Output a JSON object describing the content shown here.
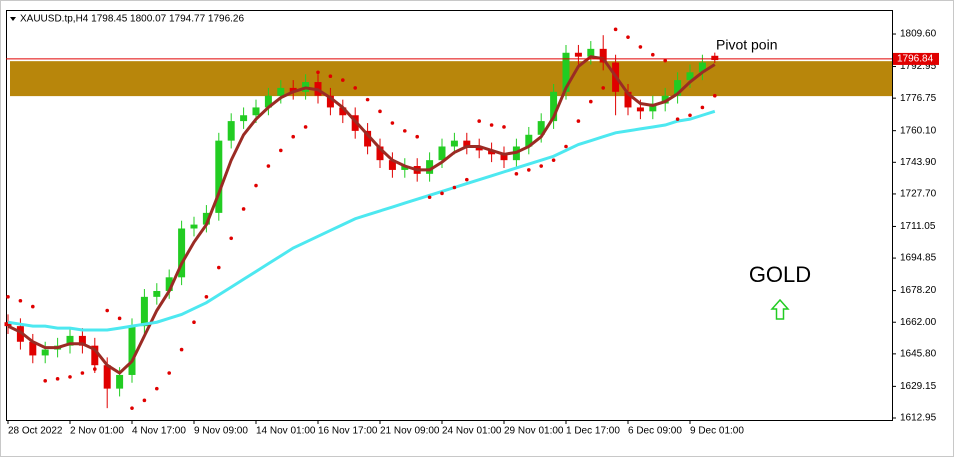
{
  "chart_data": {
    "type": "candlestick",
    "title": "XAUUSD.tp,H4  1798.45 1800.07 1794.77 1796.26",
    "categories": [
      "28 Oct 2022",
      null,
      null,
      null,
      null,
      "2 Nov 01:00",
      null,
      null,
      null,
      null,
      "4 Nov 17:00",
      null,
      null,
      null,
      null,
      "9 Nov 09:00",
      null,
      null,
      null,
      null,
      "14 Nov 01:00",
      null,
      null,
      null,
      null,
      "16 Nov 17:00",
      null,
      null,
      null,
      null,
      "21 Nov 09:00",
      null,
      null,
      null,
      null,
      "24 Nov 01:00",
      null,
      null,
      null,
      null,
      "29 Nov 01:00",
      null,
      null,
      null,
      null,
      "1 Dec 17:00",
      null,
      null,
      null,
      null,
      "6 Dec 09:00",
      null,
      null,
      null,
      null,
      "9 Dec 01:00",
      null,
      null
    ],
    "open": [
      1662,
      1660,
      1652,
      1645,
      1648,
      1650,
      1655,
      1650,
      1640,
      1628,
      1635,
      1660,
      1675,
      1678,
      1685,
      1710,
      1712,
      1718,
      1755,
      1765,
      1768,
      1772,
      1778,
      1782,
      1780,
      1785,
      1778,
      1772,
      1768,
      1760,
      1752,
      1745,
      1740,
      1742,
      1738,
      1745,
      1752,
      1755,
      1752,
      1750,
      1748,
      1745,
      1752,
      1758,
      1765,
      1780,
      1800,
      1798,
      1802,
      1795,
      1780,
      1772,
      1770,
      1774,
      1778,
      1786,
      1790,
      1798.45
    ],
    "high": [
      1666,
      1664,
      1656,
      1652,
      1654,
      1659,
      1659,
      1654,
      1644,
      1639,
      1664,
      1679,
      1682,
      1689,
      1714,
      1716,
      1722,
      1759,
      1769,
      1772,
      1776,
      1782,
      1786,
      1786,
      1789,
      1789,
      1782,
      1776,
      1772,
      1764,
      1756,
      1749,
      1746,
      1746,
      1749,
      1756,
      1759,
      1759,
      1756,
      1754,
      1752,
      1756,
      1762,
      1769,
      1784,
      1804,
      1804,
      1806,
      1809,
      1799,
      1784,
      1776,
      1778,
      1782,
      1790,
      1794,
      1799,
      1800.07
    ],
    "low": [
      1656,
      1648,
      1641,
      1641,
      1644,
      1646,
      1646,
      1636,
      1618,
      1624,
      1631,
      1656,
      1671,
      1674,
      1681,
      1706,
      1708,
      1714,
      1751,
      1761,
      1764,
      1768,
      1774,
      1776,
      1776,
      1774,
      1768,
      1764,
      1756,
      1748,
      1741,
      1736,
      1736,
      1734,
      1734,
      1741,
      1748,
      1748,
      1746,
      1744,
      1741,
      1741,
      1748,
      1754,
      1761,
      1776,
      1794,
      1794,
      1791,
      1768,
      1768,
      1766,
      1766,
      1770,
      1774,
      1782,
      1786,
      1794.77
    ],
    "close": [
      1660,
      1652,
      1645,
      1648,
      1650,
      1655,
      1650,
      1640,
      1628,
      1635,
      1660,
      1675,
      1678,
      1685,
      1710,
      1712,
      1718,
      1755,
      1765,
      1768,
      1772,
      1778,
      1782,
      1780,
      1785,
      1778,
      1772,
      1768,
      1760,
      1752,
      1745,
      1740,
      1742,
      1738,
      1745,
      1752,
      1755,
      1752,
      1750,
      1748,
      1745,
      1752,
      1758,
      1765,
      1780,
      1800,
      1798,
      1802,
      1795,
      1780,
      1772,
      1770,
      1774,
      1778,
      1786,
      1790,
      1795,
      1796.26
    ],
    "up_color": "#22cc22",
    "down_color": "#e00000",
    "overlays": [
      {
        "kind": "line",
        "color": "#9b2b24",
        "values": [
          1660,
          1657,
          1652,
          1649,
          1649,
          1651,
          1651,
          1648,
          1640,
          1636,
          1642,
          1655,
          1668,
          1678,
          1692,
          1703,
          1712,
          1728,
          1745,
          1758,
          1766,
          1772,
          1777,
          1780,
          1782,
          1781,
          1777,
          1772,
          1765,
          1758,
          1751,
          1745,
          1742,
          1740,
          1740,
          1744,
          1749,
          1752,
          1752,
          1750,
          1748,
          1749,
          1752,
          1757,
          1767,
          1782,
          1793,
          1798,
          1797,
          1788,
          1779,
          1774,
          1773,
          1775,
          1779,
          1785,
          1790,
          1794
        ]
      },
      {
        "kind": "line",
        "color": "#4de8f0",
        "values": [
          1662,
          1661,
          1660,
          1660,
          1659,
          1659,
          1658,
          1658,
          1658,
          1659,
          1660,
          1661,
          1662,
          1664,
          1666,
          1669,
          1672,
          1676,
          1680,
          1684,
          1688,
          1692,
          1696,
          1700,
          1703,
          1706,
          1709,
          1712,
          1715,
          1717,
          1719,
          1721,
          1723,
          1725,
          1727,
          1729,
          1731,
          1733,
          1735,
          1737,
          1739,
          1741,
          1743,
          1745,
          1747,
          1750,
          1753,
          1755,
          1757,
          1759,
          1760,
          1761,
          1762,
          1763,
          1765,
          1766,
          1768,
          1770
        ]
      },
      {
        "kind": "dots",
        "color": "#e00000",
        "values": [
          1675,
          1673,
          1670,
          1632,
          1633,
          1634,
          1636,
          1638,
          1668,
          1664,
          1618,
          1622,
          1628,
          1636,
          1648,
          1662,
          1675,
          1690,
          1705,
          1720,
          1732,
          1742,
          1750,
          1757,
          1762,
          1790,
          1788,
          1786,
          1782,
          1776,
          1770,
          1764,
          1760,
          1757,
          1726,
          1728,
          1731,
          1735,
          1765,
          1763,
          1762,
          1738,
          1740,
          1742,
          1745,
          1752,
          1765,
          1775,
          1782,
          1812,
          1808,
          1803,
          1799,
          1796,
          1766,
          1768,
          1772,
          1778
        ]
      }
    ],
    "price_line": 1796.84,
    "price_line_color": "#e00000",
    "zone": {
      "range": [
        1777.8,
        1795.7
      ],
      "color": "#b8860b"
    },
    "annotations": [
      "Pivot poin",
      "GOLD"
    ],
    "ylim": [
      1611.93,
      1821.9
    ],
    "yticks": [
      1612.95,
      1629.15,
      {
        "value": 1645.8,
        "label": "1645.80"
      },
      {
        "value": 1662,
        "label": "1662.00"
      },
      {
        "value": 1678.2,
        "label": "1678.20"
      },
      1694.85,
      1711.05,
      {
        "value": 1727.7,
        "label": "1727.70"
      },
      {
        "value": 1743.9,
        "label": "1743.90"
      },
      {
        "value": 1760.1,
        "label": "1760.10"
      },
      1776.75,
      1792.95,
      {
        "value": 1809.6,
        "label": "1809.60"
      }
    ]
  }
}
